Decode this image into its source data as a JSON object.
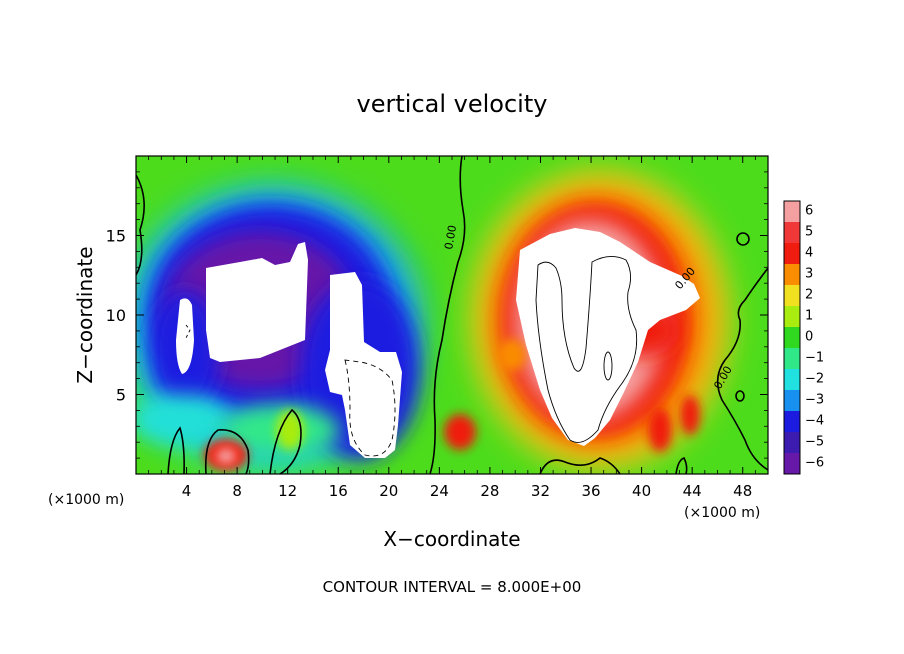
{
  "chart_data": {
    "type": "heatmap",
    "title": "vertical velocity",
    "xlabel": "X−coordinate",
    "ylabel": "Z−coordinate",
    "x_unit_left": "(×1000 m)",
    "x_unit_right": "(×1000 m)",
    "footer": "CONTOUR INTERVAL = 8.000E+00",
    "xlim": [
      0,
      50
    ],
    "ylim": [
      0,
      20
    ],
    "x_ticks": [
      4,
      8,
      12,
      16,
      20,
      24,
      28,
      32,
      36,
      40,
      44,
      48
    ],
    "x_tick_labels": [
      "4",
      "8",
      "12",
      "16",
      "20",
      "24",
      "28",
      "32",
      "36",
      "40",
      "44",
      "48"
    ],
    "y_ticks": [
      5,
      10,
      15
    ],
    "y_tick_labels": [
      "5",
      "10",
      "15"
    ],
    "colorbar": {
      "levels": [
        6,
        5,
        4,
        3,
        2,
        1,
        0,
        -1,
        -2,
        -3,
        -4,
        -5,
        -6
      ],
      "labels": [
        "6",
        "5",
        "4",
        "3",
        "2",
        "1",
        "0",
        "−1",
        "−2",
        "−3",
        "−4",
        "−5",
        "−6"
      ],
      "colors": [
        "#f4a0a0",
        "#f03838",
        "#f01c10",
        "#fa8c00",
        "#f0e020",
        "#a8ec10",
        "#30d820",
        "#30e888",
        "#20e0e0",
        "#1890f0",
        "#1c1ce0",
        "#3c1cb0",
        "#6618a8"
      ]
    },
    "contour_labels": [
      "0.00",
      "0.00",
      "0.00"
    ],
    "regions": [
      {
        "name": "updraft",
        "x_range": [
          26,
          46
        ],
        "z_range": [
          0,
          18
        ],
        "max_value": 6
      },
      {
        "name": "downdraft",
        "x_range": [
          1,
          22
        ],
        "z_range": [
          0,
          17.5
        ],
        "min_value": -6
      }
    ]
  }
}
